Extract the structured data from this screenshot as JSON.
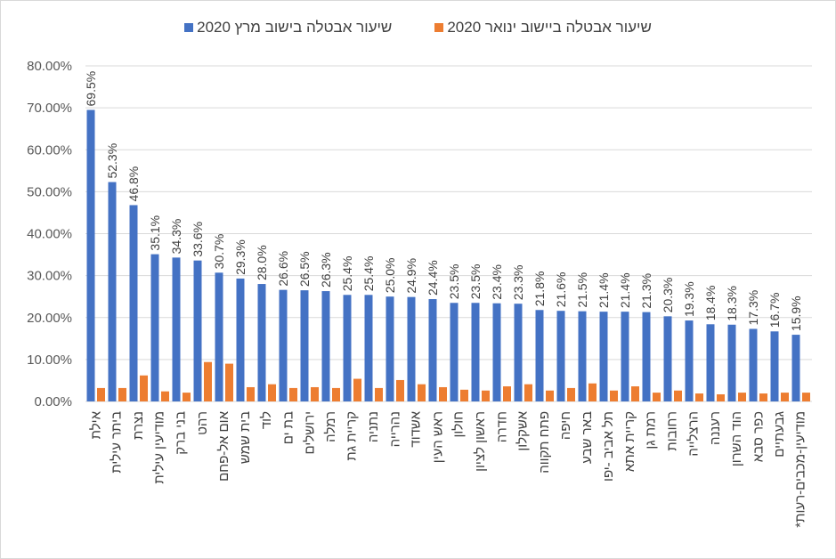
{
  "chart_data": {
    "type": "bar",
    "title": "",
    "xlabel": "",
    "ylabel": "",
    "ylim": [
      0,
      80
    ],
    "yticks": [
      "0.00%",
      "10.00%",
      "20.00%",
      "30.00%",
      "40.00%",
      "50.00%",
      "60.00%",
      "70.00%",
      "80.00%"
    ],
    "grid": true,
    "legend_position": "top",
    "categories": [
      "אילת",
      "ביתר עילית",
      "נצרת",
      "מודיעין עילית",
      "בני ברק",
      "רהט",
      "אום אל-פחם",
      "בית שמש",
      "לוד",
      "בת ים",
      "ירושלים",
      "רמלה",
      "קריית גת",
      "נתניה",
      "נהרייה",
      "אשדוד",
      "ראש העין",
      "חולון",
      "ראשון לציון",
      "חדרה",
      "אשקלון",
      "פתח תקווה",
      "חיפה",
      "באר שבע",
      "תל אביב -יפו",
      "קריית אתא",
      "רמת גן",
      "רחובות",
      "הרצלייה",
      "רעננה",
      "הוד השרון",
      "כפר סבא",
      "גבעתיים",
      "מודיעין-מכבים-רעות*"
    ],
    "series": [
      {
        "name": "שיעור אבטלה בישוב מרץ 2020",
        "color": "#4472c4",
        "values": [
          69.5,
          52.3,
          46.8,
          35.1,
          34.3,
          33.6,
          30.7,
          29.3,
          28.0,
          26.6,
          26.5,
          26.3,
          25.4,
          25.4,
          25.0,
          24.9,
          24.4,
          23.5,
          23.5,
          23.4,
          23.3,
          21.8,
          21.6,
          21.5,
          21.4,
          21.4,
          21.3,
          20.3,
          19.3,
          18.4,
          18.3,
          17.3,
          16.7,
          15.9
        ],
        "labels": [
          "69.5%",
          "52.3%",
          "46.8%",
          "35.1%",
          "34.3%",
          "33.6%",
          "30.7%",
          "29.3%",
          "28.0%",
          "26.6%",
          "26.5%",
          "26.3%",
          "25.4%",
          "25.4%",
          "25.0%",
          "24.9%",
          "24.4%",
          "23.5%",
          "23.5%",
          "23.4%",
          "23.3%",
          "21.8%",
          "21.6%",
          "21.5%",
          "21.4%",
          "21.4%",
          "21.3%",
          "20.3%",
          "19.3%",
          "18.4%",
          "18.3%",
          "17.3%",
          "16.7%",
          "15.9%"
        ]
      },
      {
        "name": "שיעור אבטלה ביישוב ינואר 2020",
        "color": "#ed7d31",
        "values": [
          3.2,
          3.2,
          6.2,
          2.4,
          2.1,
          9.4,
          9.0,
          3.4,
          4.1,
          3.2,
          3.4,
          3.2,
          5.4,
          3.2,
          5.1,
          4.1,
          3.4,
          2.8,
          2.6,
          3.6,
          4.1,
          2.6,
          3.2,
          4.3,
          2.6,
          3.6,
          2.1,
          2.6,
          1.9,
          1.7,
          2.1,
          1.9,
          2.1,
          2.1
        ]
      }
    ]
  }
}
